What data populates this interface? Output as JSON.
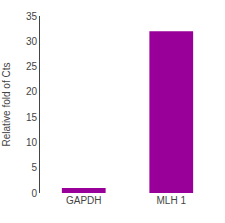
{
  "chart_data": {
    "type": "bar",
    "categories": [
      "GAPDH",
      "MLH 1"
    ],
    "values": [
      1.0,
      32.0
    ],
    "color": "#990099",
    "ylabel": "Relative fold of Cts",
    "ylim": [
      0,
      35
    ],
    "yticks": [
      0,
      5,
      10,
      15,
      20,
      25,
      30,
      35
    ],
    "grid": false
  }
}
